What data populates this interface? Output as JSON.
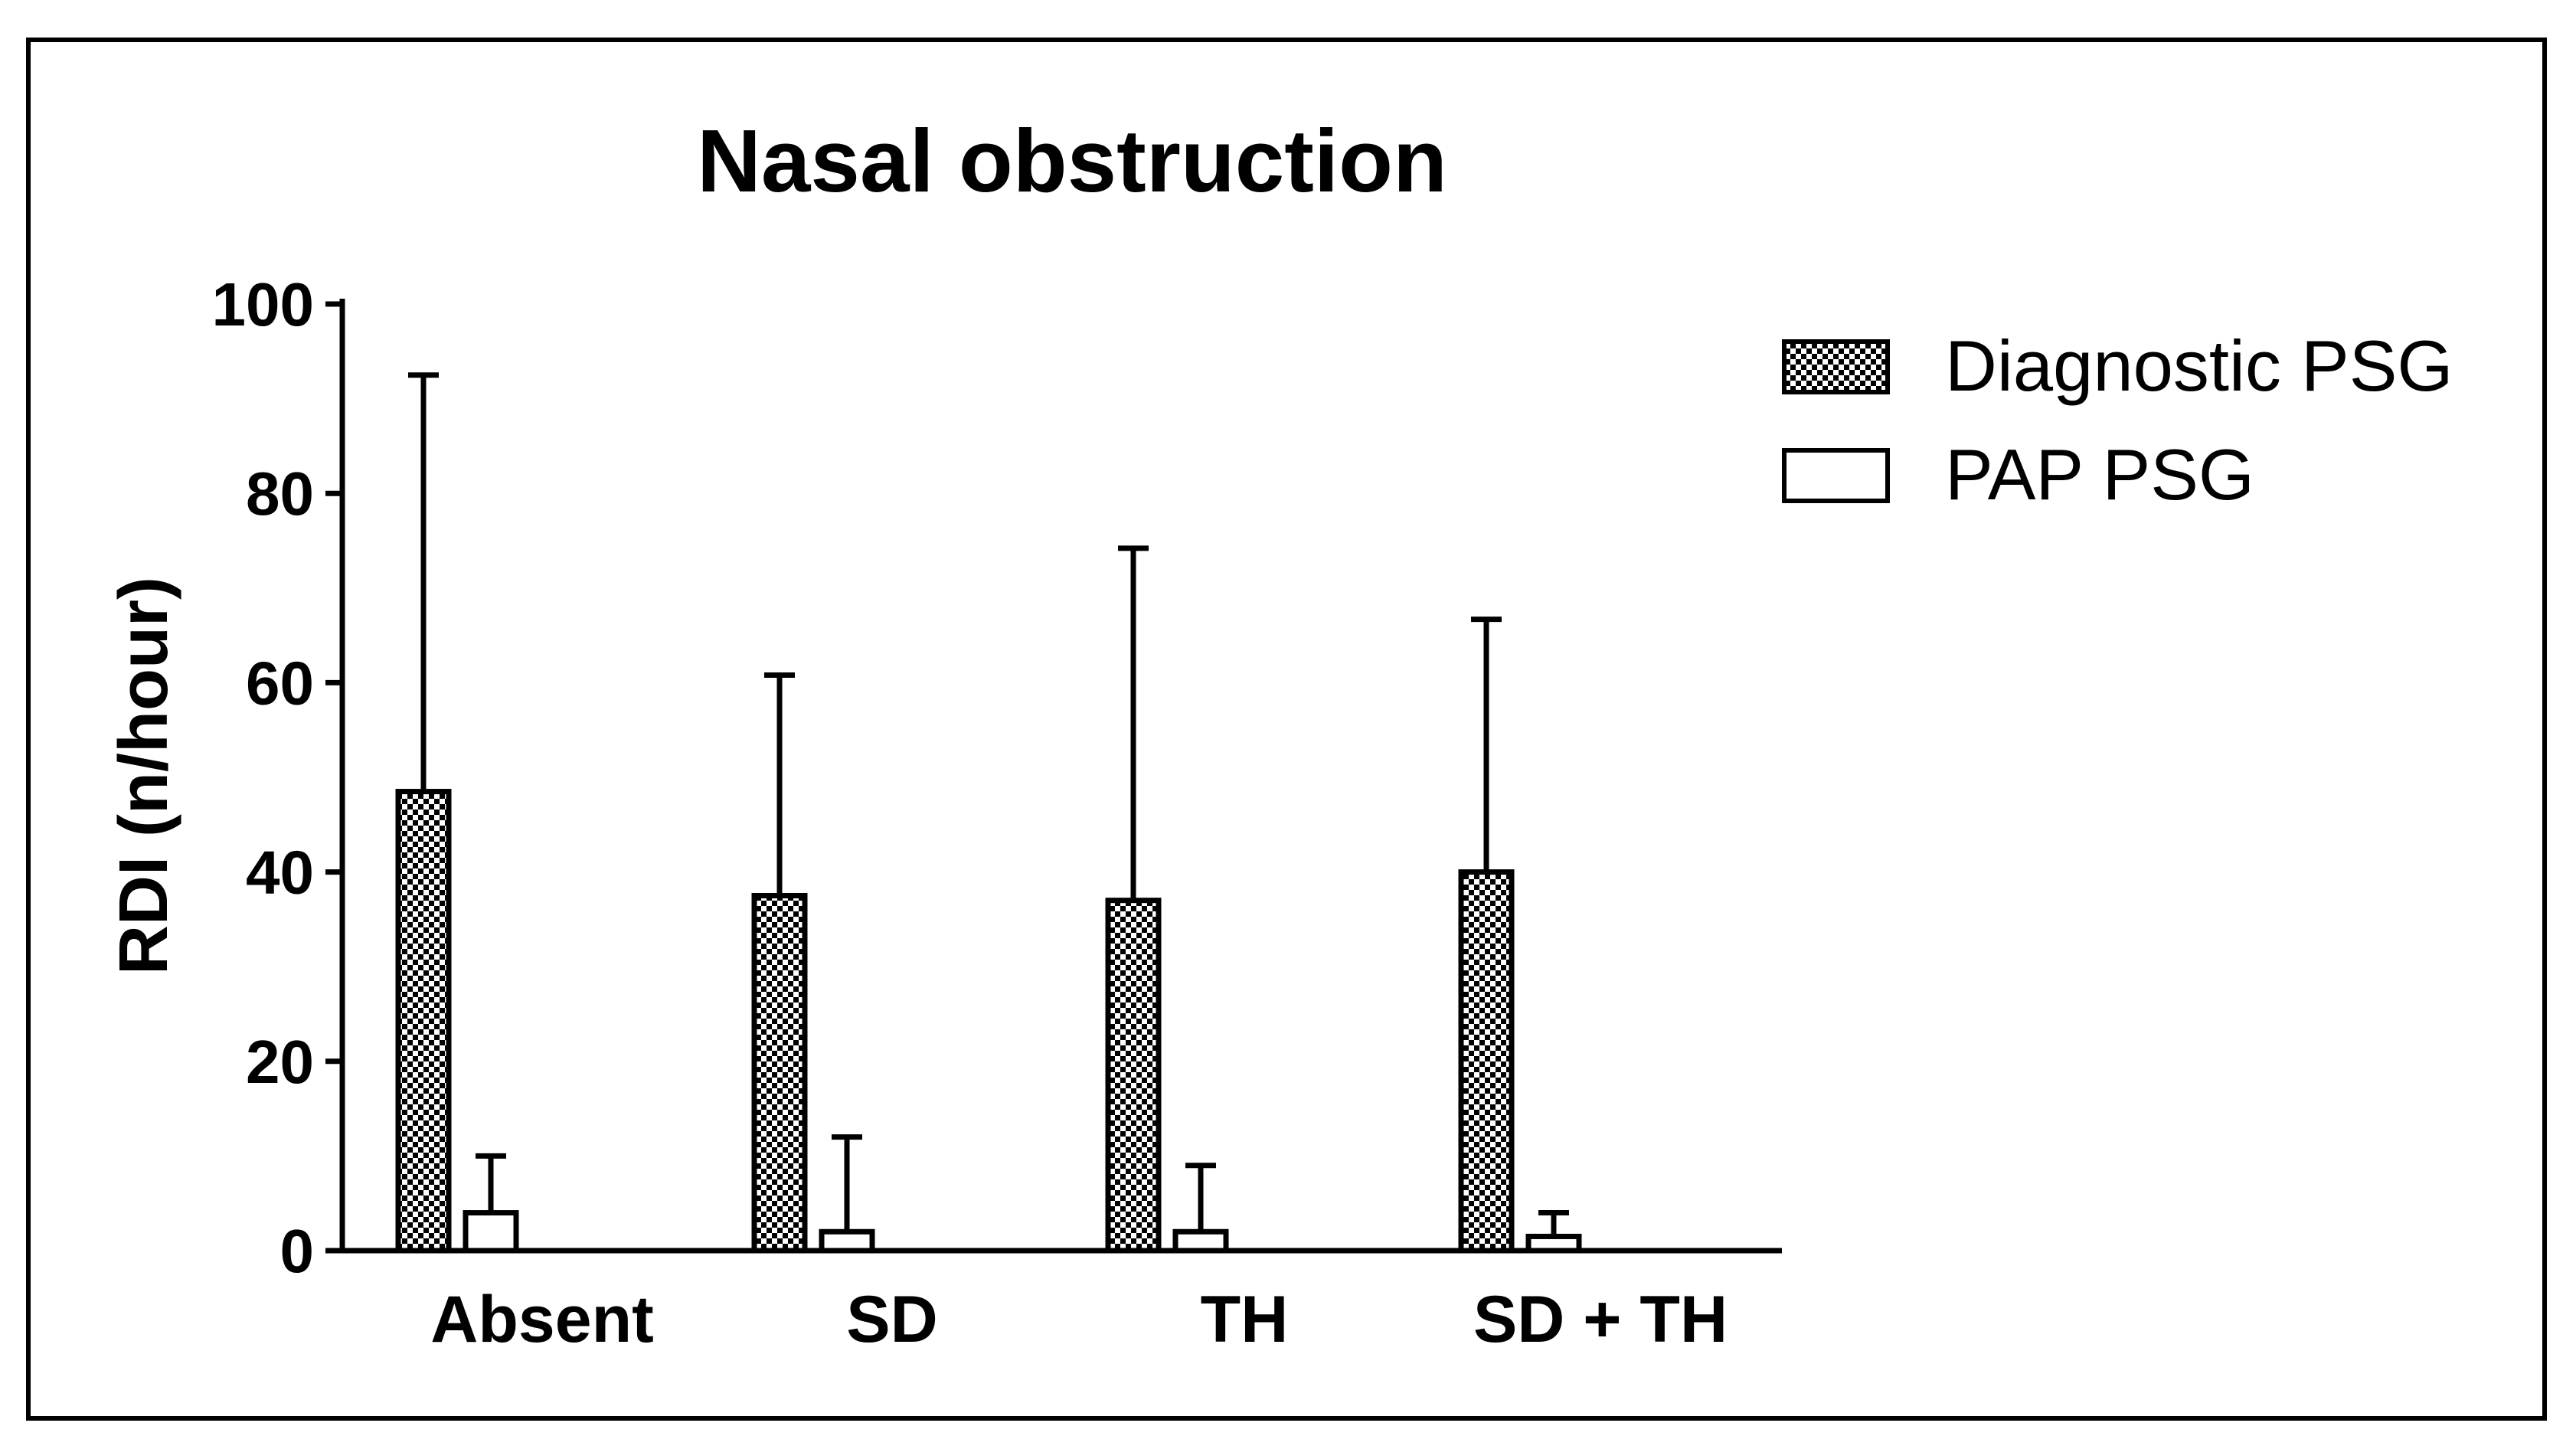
{
  "chart_data": {
    "type": "bar",
    "title": "Nasal obstruction",
    "xlabel": "",
    "ylabel": "RDI (n/hour)",
    "ylim": [
      0,
      100
    ],
    "yticks": [
      0,
      20,
      40,
      60,
      80,
      100
    ],
    "categories": [
      "Absent",
      "SD",
      "TH",
      "SD + TH"
    ],
    "error_bars": "upper",
    "legend_position": "top-right",
    "series": [
      {
        "name": "Diagnostic PSG",
        "pattern": "checkered",
        "values": [
          48.5,
          37.5,
          37,
          40
        ],
        "error_upper": [
          92.5,
          60.8,
          74.2,
          66.7
        ]
      },
      {
        "name": "PAP PSG",
        "pattern": "open",
        "values": [
          4,
          2,
          2,
          1.5
        ],
        "error_upper": [
          10,
          12,
          9,
          4
        ]
      }
    ]
  },
  "colors": {
    "ink": "#000000",
    "background": "#ffffff",
    "checker_light": "#ffffff",
    "checker_dark": "#000000"
  }
}
